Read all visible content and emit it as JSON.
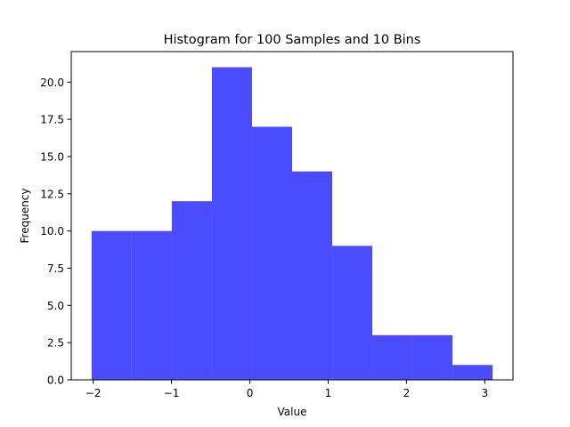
{
  "chart_data": {
    "type": "bar",
    "title": "Histogram for 100 Samples and 10 Bins",
    "xlabel": "Value",
    "ylabel": "Frequency",
    "bin_edges": [
      -2.02,
      -1.508,
      -0.996,
      -0.484,
      0.028,
      0.54,
      1.052,
      1.564,
      2.076,
      2.588,
      3.1
    ],
    "values": [
      10,
      10,
      12,
      21,
      17,
      14,
      9,
      3,
      3,
      1
    ],
    "xlim": [
      -2.28,
      3.36
    ],
    "ylim": [
      0,
      22.05
    ],
    "xticks": [
      -2,
      -1,
      0,
      1,
      2,
      3
    ],
    "xtick_labels": [
      "−2",
      "−1",
      "0",
      "1",
      "2",
      "3"
    ],
    "yticks": [
      0,
      2.5,
      5,
      7.5,
      10,
      12.5,
      15,
      17.5,
      20
    ],
    "ytick_labels": [
      "0.0",
      "2.5",
      "5.0",
      "7.5",
      "10.0",
      "12.5",
      "15.0",
      "17.5",
      "20.0"
    ],
    "bar_color": "#4b4bff",
    "grid": false,
    "legend": "none"
  }
}
